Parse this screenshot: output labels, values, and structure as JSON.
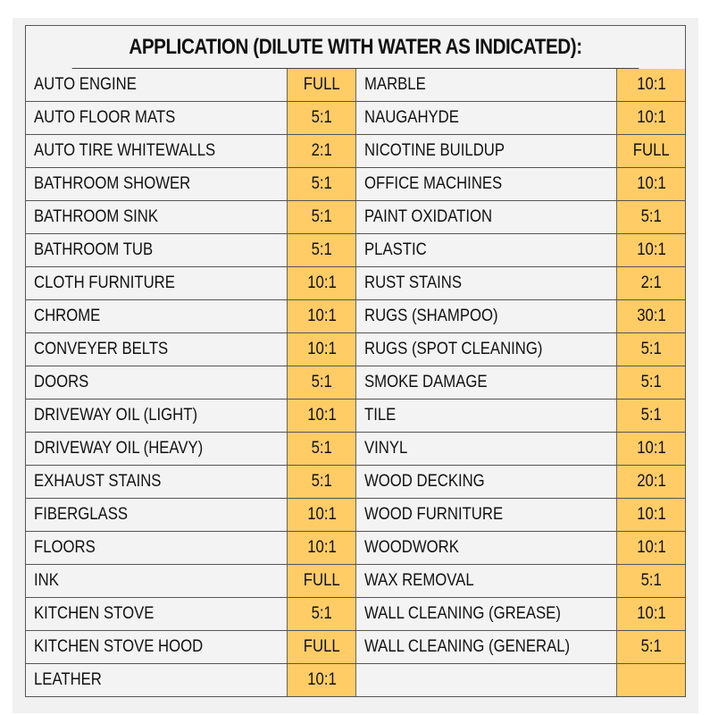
{
  "title": "APPLICATION (DILUTE WITH WATER AS INDICATED):",
  "colors": {
    "ratio_cell_bg": "#ffcc66",
    "name_cell_bg": "#f3f3f3",
    "border": "#555555"
  },
  "rows": [
    {
      "left": {
        "name": "AUTO ENGINE",
        "ratio": "FULL"
      },
      "right": {
        "name": "MARBLE",
        "ratio": "10:1"
      }
    },
    {
      "left": {
        "name": "AUTO FLOOR MATS",
        "ratio": "5:1"
      },
      "right": {
        "name": "NAUGAHYDE",
        "ratio": "10:1"
      }
    },
    {
      "left": {
        "name": "AUTO TIRE WHITEWALLS",
        "ratio": "2:1"
      },
      "right": {
        "name": "NICOTINE BUILDUP",
        "ratio": "FULL"
      }
    },
    {
      "left": {
        "name": "BATHROOM SHOWER",
        "ratio": "5:1"
      },
      "right": {
        "name": "OFFICE MACHINES",
        "ratio": "10:1"
      }
    },
    {
      "left": {
        "name": "BATHROOM SINK",
        "ratio": "5:1"
      },
      "right": {
        "name": "PAINT OXIDATION",
        "ratio": "5:1"
      }
    },
    {
      "left": {
        "name": "BATHROOM TUB",
        "ratio": "5:1"
      },
      "right": {
        "name": "PLASTIC",
        "ratio": "10:1"
      }
    },
    {
      "left": {
        "name": "CLOTH FURNITURE",
        "ratio": "10:1"
      },
      "right": {
        "name": "RUST STAINS",
        "ratio": "2:1"
      }
    },
    {
      "left": {
        "name": "CHROME",
        "ratio": "10:1"
      },
      "right": {
        "name": "RUGS (SHAMPOO)",
        "ratio": "30:1"
      }
    },
    {
      "left": {
        "name": "CONVEYER BELTS",
        "ratio": "10:1"
      },
      "right": {
        "name": "RUGS (SPOT CLEANING)",
        "ratio": "5:1"
      }
    },
    {
      "left": {
        "name": "DOORS",
        "ratio": "5:1"
      },
      "right": {
        "name": "SMOKE DAMAGE",
        "ratio": "5:1"
      }
    },
    {
      "left": {
        "name": "DRIVEWAY OIL (LIGHT)",
        "ratio": "10:1"
      },
      "right": {
        "name": "TILE",
        "ratio": "5:1"
      }
    },
    {
      "left": {
        "name": "DRIVEWAY OIL (HEAVY)",
        "ratio": "5:1"
      },
      "right": {
        "name": "VINYL",
        "ratio": "10:1"
      }
    },
    {
      "left": {
        "name": "EXHAUST STAINS",
        "ratio": "5:1"
      },
      "right": {
        "name": "WOOD DECKING",
        "ratio": "20:1"
      }
    },
    {
      "left": {
        "name": "FIBERGLASS",
        "ratio": "10:1"
      },
      "right": {
        "name": "WOOD FURNITURE",
        "ratio": "10:1"
      }
    },
    {
      "left": {
        "name": "FLOORS",
        "ratio": "10:1"
      },
      "right": {
        "name": "WOODWORK",
        "ratio": "10:1"
      }
    },
    {
      "left": {
        "name": "INK",
        "ratio": "FULL"
      },
      "right": {
        "name": "WAX REMOVAL",
        "ratio": "5:1"
      }
    },
    {
      "left": {
        "name": "KITCHEN STOVE",
        "ratio": "5:1"
      },
      "right": {
        "name": "WALL CLEANING (GREASE)",
        "ratio": "10:1"
      }
    },
    {
      "left": {
        "name": "KITCHEN STOVE HOOD",
        "ratio": "FULL"
      },
      "right": {
        "name": "WALL CLEANING (GENERAL)",
        "ratio": "5:1"
      }
    },
    {
      "left": {
        "name": "LEATHER",
        "ratio": "10:1"
      },
      "right": {
        "name": "",
        "ratio": ""
      }
    }
  ]
}
